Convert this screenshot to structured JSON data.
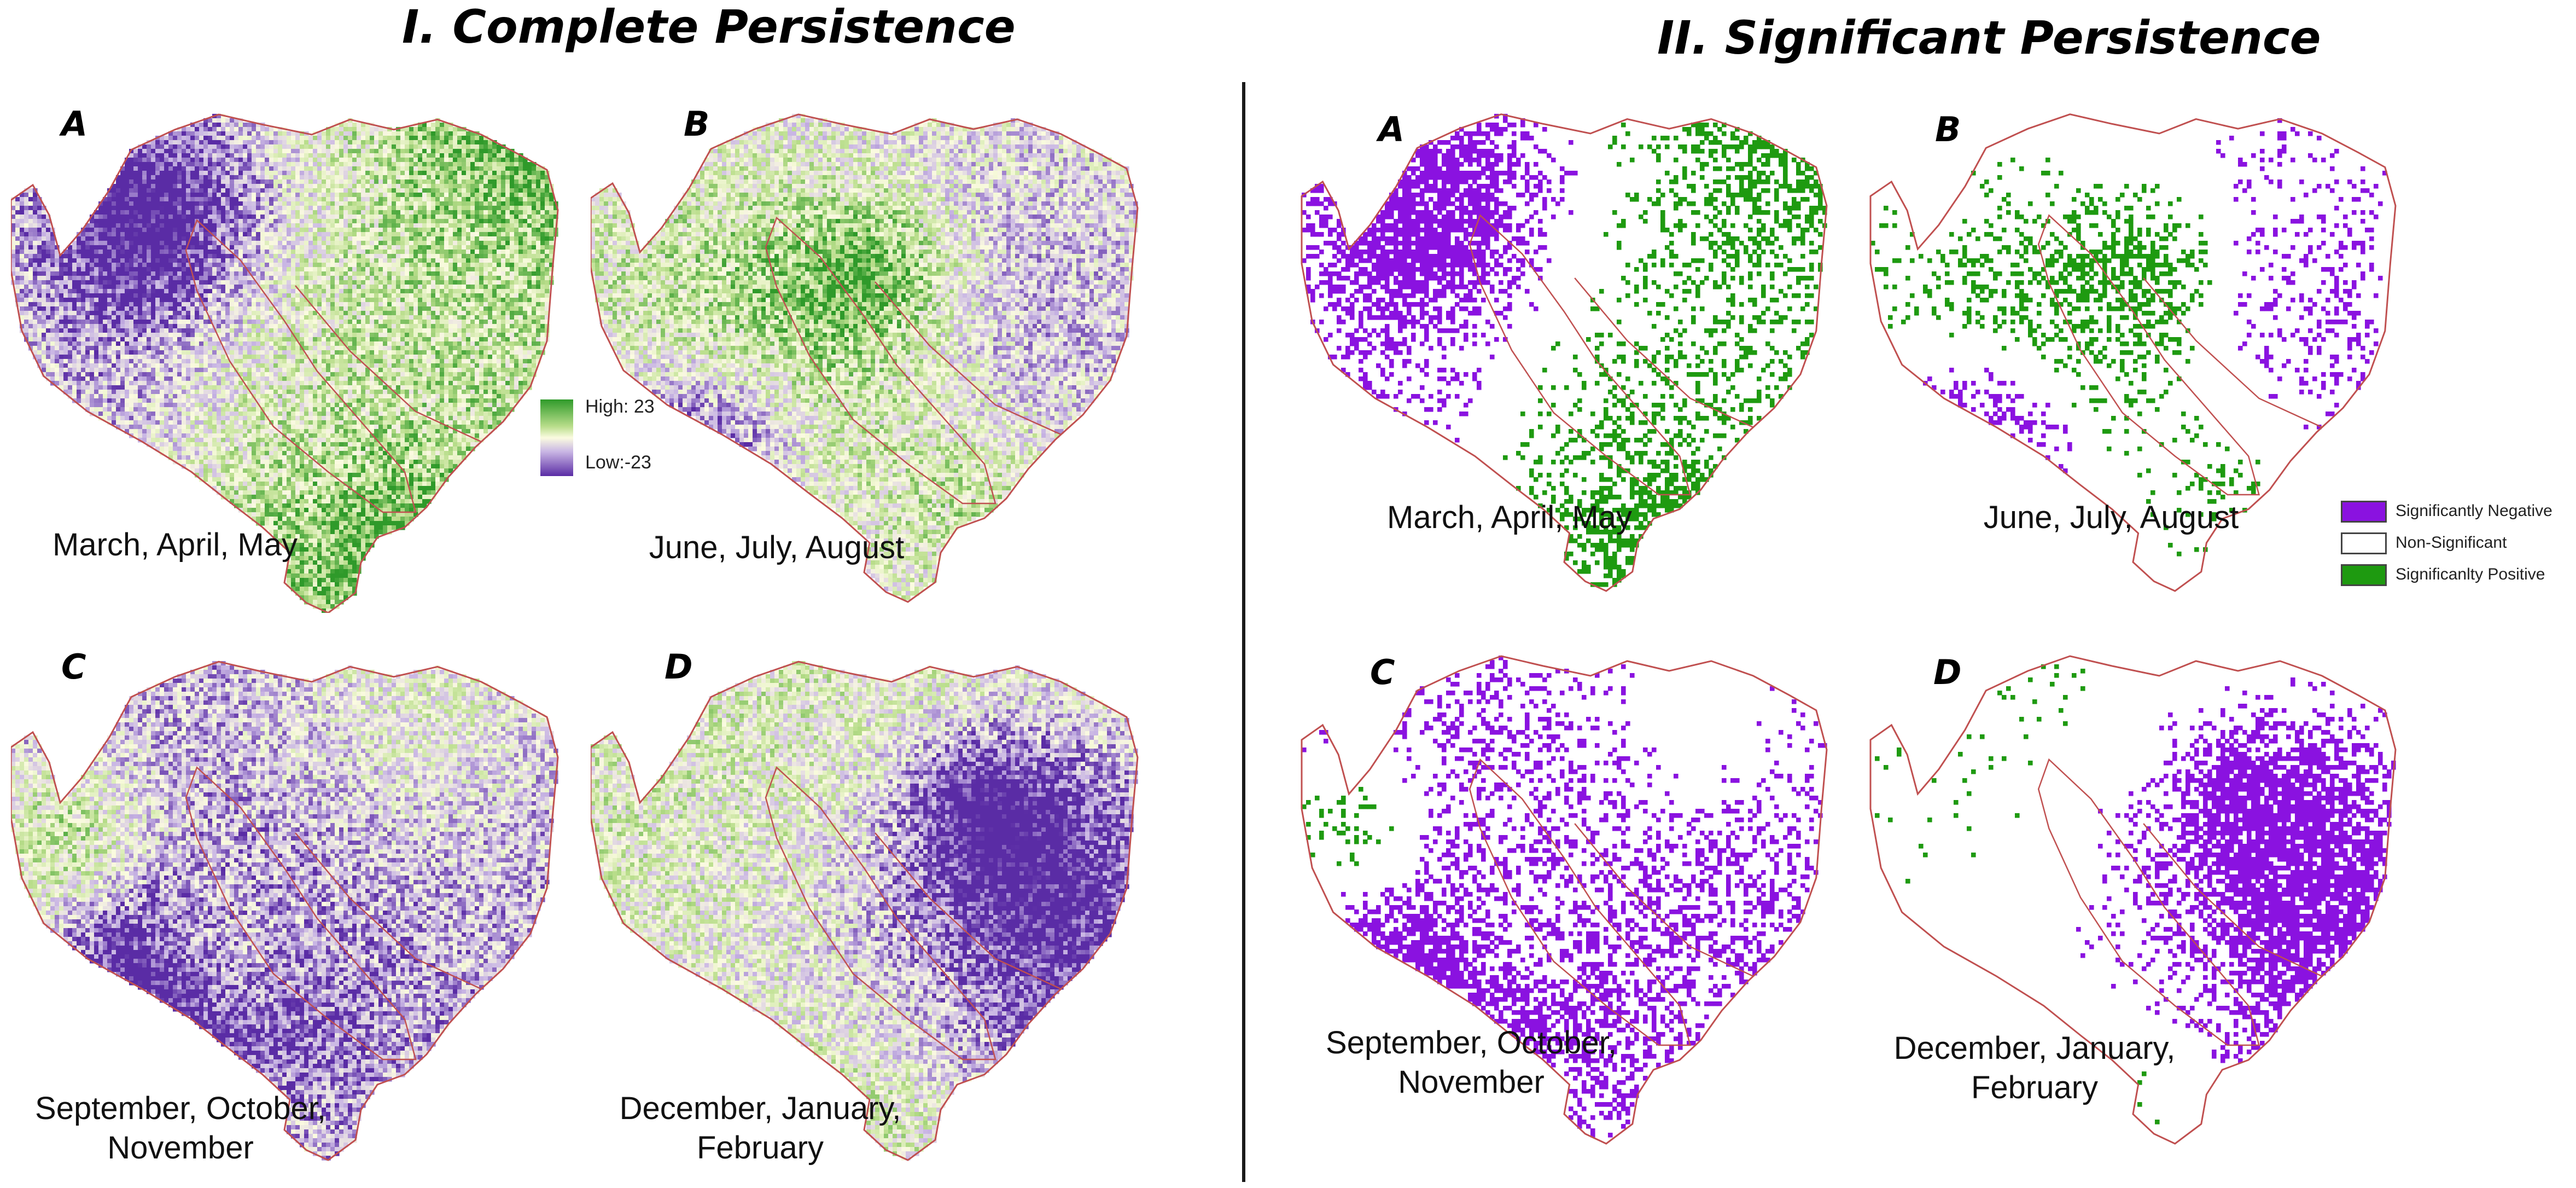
{
  "titles": {
    "complete": "I. Complete Persistence",
    "significant": "II. Significant Persistence"
  },
  "colors": {
    "green_high": "#2f9a2a",
    "purple_low": "#5a2ca5",
    "neutral": "#fbfbe0",
    "sig_negative": "#8a12e0",
    "sig_positive": "#1e9a10",
    "non_significant": "#ffffff",
    "boundary": "#c05050"
  },
  "legend_continuous": {
    "high": "High: 23",
    "low": "Low:-23"
  },
  "legend_categorical": [
    {
      "label": "Significantly Negative",
      "color": "#8a12e0"
    },
    {
      "label": "Non-Significant",
      "color": "#ffffff"
    },
    {
      "label": "Significanlty Positive",
      "color": "#1e9a10"
    }
  ],
  "panels": [
    {
      "section": "complete",
      "letter": "A",
      "caption": [
        "March, April, May"
      ],
      "bias": 0.45,
      "seed": 11
    },
    {
      "section": "complete",
      "letter": "B",
      "caption": [
        "June, July, August"
      ],
      "bias": -0.15,
      "seed": 23
    },
    {
      "section": "complete",
      "letter": "C",
      "caption": [
        "September, October,",
        "November"
      ],
      "bias": -0.55,
      "seed": 37
    },
    {
      "section": "complete",
      "letter": "D",
      "caption": [
        "December, January,",
        "February"
      ],
      "bias": 0.15,
      "seed": 41
    },
    {
      "section": "significant",
      "letter": "A",
      "caption": [
        "March, April, May"
      ],
      "bias": 0.45,
      "seed": 11
    },
    {
      "section": "significant",
      "letter": "B",
      "caption": [
        "June, July, August"
      ],
      "bias": -0.15,
      "seed": 23
    },
    {
      "section": "significant",
      "letter": "C",
      "caption": [
        "September, October,",
        "November"
      ],
      "bias": -0.55,
      "seed": 37
    },
    {
      "section": "significant",
      "letter": "D",
      "caption": [
        "December, January,",
        "February"
      ],
      "bias": 0.15,
      "seed": 41
    }
  ]
}
